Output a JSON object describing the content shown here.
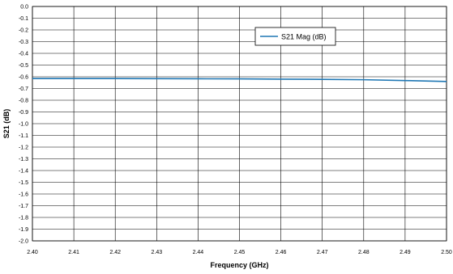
{
  "chart_data": {
    "type": "line",
    "title": "",
    "xlabel": "Frequency (GHz)",
    "ylabel": "S21 (dB)",
    "xlim": [
      2.4,
      2.5
    ],
    "ylim": [
      -2.0,
      0.0
    ],
    "x_ticks": [
      "2.40",
      "2.41",
      "2.42",
      "2.43",
      "2.44",
      "2.45",
      "2.46",
      "2.47",
      "2.48",
      "2.49",
      "2.50"
    ],
    "y_ticks": [
      "0.0",
      "-0.1",
      "-0.2",
      "-0.3",
      "-0.4",
      "-0.5",
      "-0.6",
      "-0.7",
      "-0.8",
      "-0.9",
      "-1.0",
      "-1.1",
      "-1.2",
      "-1.3",
      "-1.4",
      "-1.5",
      "-1.6",
      "-1.7",
      "-1.8",
      "-1.9",
      "-2.0"
    ],
    "grid": true,
    "legend_position": "top-right",
    "series": [
      {
        "name": "S21 Mag (dB)",
        "color": "#1f77b4",
        "x": [
          2.4,
          2.41,
          2.42,
          2.43,
          2.44,
          2.45,
          2.46,
          2.47,
          2.48,
          2.49,
          2.5
        ],
        "y": [
          -0.615,
          -0.615,
          -0.615,
          -0.616,
          -0.617,
          -0.618,
          -0.62,
          -0.622,
          -0.625,
          -0.632,
          -0.64
        ]
      }
    ]
  }
}
